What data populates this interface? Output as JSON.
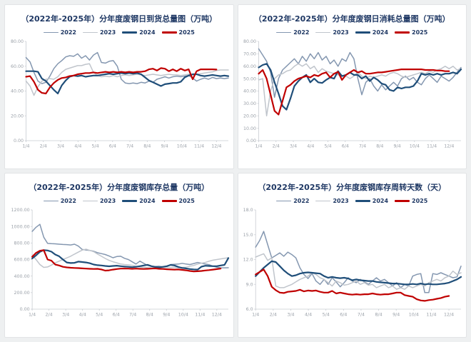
{
  "page": {
    "title_color": "#1F3864",
    "background": "#eef0f1"
  },
  "chart_data": [
    {
      "type": "line",
      "title": "（2022年-2025年）分年度废钢日到货总量图（万吨）",
      "ylim": [
        0,
        80
      ],
      "xmax": 51,
      "xtick_interval": 4.3636,
      "grid": false,
      "legend_position": "top",
      "yticks": [
        {
          "v": 0,
          "label": "0.00"
        },
        {
          "v": 20,
          "label": "20.00"
        },
        {
          "v": 40,
          "label": "40.00"
        },
        {
          "v": 60,
          "label": "60.00"
        },
        {
          "v": 80,
          "label": "80.00"
        }
      ],
      "xticks": [
        "1/4",
        "2/4",
        "3/4",
        "4/4",
        "5/4",
        "6/4",
        "7/4",
        "8/4",
        "9/4",
        "10/4",
        "11/4",
        "12/4"
      ],
      "series": [
        {
          "name": "2022",
          "color": "#8497B0",
          "width": 1.5,
          "values": [
            67,
            63.5,
            55,
            48,
            46,
            47,
            52,
            58,
            62,
            64.5,
            67.5,
            68.5,
            68,
            70,
            66.5,
            68.5,
            65,
            69,
            71,
            63,
            62.5,
            64,
            64.5,
            60,
            49.5,
            46.5,
            46,
            46.5,
            46,
            47,
            46.5,
            48,
            47,
            49.5,
            50.5,
            51.5,
            50.5,
            51.5,
            52,
            51.5,
            52,
            52.5,
            50.5,
            48,
            49.5,
            50.5,
            49.5,
            51,
            50,
            50.5,
            50,
            50.5
          ]
        },
        {
          "name": "2023",
          "color": "#C0C5CC",
          "width": 1.5,
          "values": [
            48,
            44,
            36.5,
            43.5,
            48,
            49.5,
            50,
            49.5,
            51.5,
            55,
            57.5,
            58.5,
            59.5,
            60.5,
            60.5,
            61.5,
            62,
            55,
            52.5,
            51.5,
            52,
            51.5,
            52.5,
            51.5,
            52.5,
            53,
            52.5,
            53,
            53.5,
            53,
            52.5,
            53,
            53.5,
            53,
            52.5,
            53,
            53.5,
            53,
            53,
            52.5,
            53,
            53.5,
            53,
            53.5,
            54,
            54.5,
            55,
            55.5,
            56.5,
            57,
            57,
            57
          ]
        },
        {
          "name": "2024",
          "color": "#1F4E79",
          "width": 2.2,
          "values": [
            56,
            56,
            56,
            55.5,
            50,
            48,
            44.5,
            41,
            38,
            44.5,
            48.5,
            51.5,
            52.5,
            52,
            52.5,
            51.5,
            52,
            52.5,
            52.5,
            53,
            53.5,
            54,
            53.5,
            54,
            54.5,
            54,
            54.5,
            54,
            54.5,
            53.5,
            51,
            48.5,
            47,
            45.5,
            44,
            45.5,
            46,
            46.5,
            46.5,
            47.5,
            51,
            52.5,
            53.5,
            53.5,
            52.5,
            52,
            52.5,
            53,
            52.5,
            52,
            52.5,
            52
          ]
        },
        {
          "name": "2025",
          "color": "#C00000",
          "width": 2.2,
          "values": [
            51.5,
            52,
            47.5,
            41,
            38.5,
            38,
            43,
            46.5,
            49,
            50.5,
            51,
            52,
            52.5,
            53.5,
            54,
            54.5,
            54.5,
            55,
            54.5,
            55,
            55.5,
            55,
            55.5,
            55,
            55.5,
            55,
            55.5,
            55,
            55.5,
            55.5,
            56,
            57.5,
            58,
            56.5,
            58.5,
            58,
            56,
            57.5,
            56,
            58,
            56.5,
            57.5,
            49.5,
            56,
            57.5,
            57.5,
            57.5,
            57.5,
            57.3
          ]
        }
      ]
    },
    {
      "type": "line",
      "title": "（2022年-2025年）分年度废钢日消耗总量图（万吨）",
      "ylim": [
        0,
        80
      ],
      "xmax": 51,
      "xtick_interval": 4.3636,
      "grid": false,
      "legend_position": "top",
      "yticks": [
        {
          "v": 0,
          "label": "0.00"
        },
        {
          "v": 10,
          "label": "10.00"
        },
        {
          "v": 20,
          "label": "20.00"
        },
        {
          "v": 30,
          "label": "30.00"
        },
        {
          "v": 40,
          "label": "40.00"
        },
        {
          "v": 50,
          "label": "50.00"
        },
        {
          "v": 60,
          "label": "60.00"
        },
        {
          "v": 70,
          "label": "70.00"
        },
        {
          "v": 80,
          "label": "80.00"
        }
      ],
      "xticks": [
        "1/4",
        "2/4",
        "3/4",
        "4/4",
        "5/4",
        "6/4",
        "7/4",
        "8/4",
        "9/4",
        "10/4",
        "11/4",
        "12/4"
      ],
      "series": [
        {
          "name": "2022",
          "color": "#8497B0",
          "width": 1.5,
          "values": [
            74,
            69,
            64,
            55,
            35,
            50,
            57,
            60,
            63,
            66,
            62,
            68,
            64,
            70,
            66,
            71,
            65,
            68,
            62,
            65,
            60,
            66,
            64,
            71,
            66,
            50,
            37,
            47,
            50,
            44,
            40,
            45,
            41,
            44,
            47,
            44,
            50,
            52,
            49,
            51,
            47,
            45,
            50,
            53,
            50,
            47,
            52,
            50,
            48,
            51,
            55,
            59
          ]
        },
        {
          "name": "2023",
          "color": "#C0C5CC",
          "width": 1.5,
          "values": [
            49,
            50,
            20,
            40,
            50,
            53,
            54,
            56,
            57,
            60,
            62,
            60,
            62,
            58,
            60,
            55,
            58,
            56,
            55,
            54,
            53,
            52.5,
            52,
            50,
            52,
            55,
            52,
            50,
            52,
            51,
            52,
            53,
            52,
            54,
            55,
            54,
            52,
            51,
            52,
            53,
            54,
            55,
            54,
            56,
            55,
            57,
            58,
            60,
            58,
            60,
            57,
            58
          ]
        },
        {
          "name": "2024",
          "color": "#1F4E79",
          "width": 2.2,
          "values": [
            59,
            61,
            62,
            57,
            47,
            38,
            28,
            25,
            34,
            44,
            48,
            51,
            53,
            47,
            50,
            47,
            46.5,
            49,
            51,
            50,
            56,
            52,
            53,
            55,
            53,
            53,
            50,
            52,
            48,
            51,
            49,
            46,
            45,
            41,
            40,
            43,
            42,
            43,
            43,
            44,
            48,
            54,
            53,
            54,
            53,
            54,
            53,
            54,
            54,
            55,
            54,
            57.5
          ]
        },
        {
          "name": "2025",
          "color": "#C00000",
          "width": 2.2,
          "values": [
            54,
            57,
            50,
            37,
            24,
            21,
            32,
            43,
            45,
            48,
            50,
            51,
            52,
            51,
            53,
            52,
            54,
            55,
            51,
            54,
            55.5,
            49,
            53,
            55,
            57,
            55,
            56,
            54,
            54,
            54.5,
            55,
            55,
            55.5,
            56,
            56.5,
            57,
            57.5,
            57.5,
            57.5,
            57.5,
            57.5,
            57.5,
            57,
            57,
            57,
            56.5,
            56.5,
            56,
            56
          ]
        }
      ]
    },
    {
      "type": "line",
      "title": "（2022年-2025年）分年度废钢库存总量（万吨）",
      "ylim": [
        0,
        1200
      ],
      "xmax": 51,
      "xtick_interval": 4.3636,
      "grid": false,
      "legend_position": "top",
      "yticks": [
        {
          "v": 0,
          "label": "0.00"
        },
        {
          "v": 200,
          "label": "200.00"
        },
        {
          "v": 400,
          "label": "400.00"
        },
        {
          "v": 600,
          "label": "600.00"
        },
        {
          "v": 800,
          "label": "800.00"
        },
        {
          "v": 1000,
          "label": "1000.00"
        },
        {
          "v": 1200,
          "label": "1200.00"
        }
      ],
      "xticks": [
        "1/4",
        "2/4",
        "3/4",
        "4/4",
        "5/4",
        "6/4",
        "7/4",
        "8/4",
        "9/4",
        "10/4",
        "11/4",
        "12/4"
      ],
      "series": [
        {
          "name": "2022",
          "color": "#8497B0",
          "width": 1.5,
          "values": [
            940,
            990,
            1026,
            870,
            795,
            792,
            790,
            786,
            782,
            780,
            776,
            786,
            762,
            722,
            716,
            710,
            700,
            682,
            672,
            660,
            642,
            622,
            636,
            640,
            615,
            600,
            572,
            546,
            581,
            554,
            528,
            520,
            515,
            520,
            510,
            516,
            540,
            543,
            546,
            554,
            546,
            540,
            552,
            565,
            556,
            546,
            538,
            520,
            506,
            501,
            500,
            501
          ]
        },
        {
          "name": "2023",
          "color": "#C0C5CC",
          "width": 1.5,
          "values": [
            656,
            600,
            540,
            505,
            510,
            533,
            560,
            580,
            600,
            620,
            640,
            666,
            690,
            714,
            725,
            710,
            695,
            666,
            640,
            613,
            590,
            573,
            560,
            546,
            540,
            535,
            530,
            520,
            510,
            506,
            502,
            500,
            503,
            505,
            502,
            506,
            504,
            506,
            503,
            505,
            508,
            520,
            528,
            546,
            556,
            565,
            580,
            592,
            600,
            608,
            615,
            622
          ]
        },
        {
          "name": "2024",
          "color": "#1F4E79",
          "width": 2.2,
          "values": [
            613,
            650,
            693,
            714,
            710,
            695,
            660,
            640,
            600,
            565,
            558,
            560,
            575,
            570,
            565,
            555,
            540,
            532,
            528,
            522,
            518,
            522,
            526,
            520,
            515,
            512,
            508,
            512,
            520,
            528,
            536,
            520,
            510,
            505,
            512,
            520,
            535,
            528,
            510,
            498,
            493,
            485,
            480,
            478,
            514,
            525,
            522,
            520,
            520,
            528,
            535,
            618
          ]
        },
        {
          "name": "2025",
          "color": "#C00000",
          "width": 2.2,
          "values": [
            634,
            680,
            706,
            714,
            600,
            586,
            540,
            528,
            512,
            505,
            501,
            498,
            496,
            493,
            490,
            488,
            486,
            488,
            480,
            466,
            470,
            478,
            485,
            490,
            492,
            490,
            488,
            490,
            488,
            486,
            488,
            490,
            493,
            488,
            486,
            483,
            480,
            478,
            480,
            475,
            470,
            462,
            456,
            458,
            462,
            468,
            472,
            478,
            484,
            490
          ]
        }
      ]
    },
    {
      "type": "line",
      "title": "（2022年-2025年）分年度废钢库存周转天数（天）",
      "ylim": [
        6,
        18
      ],
      "xmax": 51,
      "xtick_interval": 4.3636,
      "grid": false,
      "legend_position": "top",
      "yticks": [
        {
          "v": 6,
          "label": "6.0"
        },
        {
          "v": 9,
          "label": "9.0"
        },
        {
          "v": 12,
          "label": "12.0"
        },
        {
          "v": 15,
          "label": "15.0"
        },
        {
          "v": 18,
          "label": "18.0"
        }
      ],
      "xticks": [
        "1/4",
        "2/4",
        "3/4",
        "4/4",
        "5/4",
        "6/4",
        "7/4",
        "8/4",
        "9/4",
        "10/4",
        "11/4",
        "12/4"
      ],
      "series": [
        {
          "name": "2022",
          "color": "#8497B0",
          "width": 1.5,
          "values": [
            13.5,
            14.3,
            15.4,
            13.8,
            12.2,
            12.5,
            12.8,
            12.4,
            12.9,
            12.6,
            12.2,
            11.0,
            10.2,
            9.7,
            10.3,
            9.4,
            9.0,
            9.6,
            9.0,
            9.8,
            9.3,
            8.7,
            9.2,
            9.8,
            9.4,
            9.2,
            9.6,
            9.3,
            9.0,
            9.4,
            9.8,
            9.4,
            9.6,
            9.2,
            8.8,
            9.2,
            8.6,
            9.0,
            8.8,
            10.0,
            10.2,
            10.3,
            8.0,
            8.0,
            10.3,
            10.2,
            10.4,
            10.2,
            10.0,
            9.8,
            9.9,
            11.2
          ]
        },
        {
          "name": "2023",
          "color": "#C0C5CC",
          "width": 1.5,
          "values": [
            12.3,
            12.5,
            12.7,
            11.9,
            12.2,
            8.8,
            8.6,
            8.6,
            8.8,
            9.0,
            9.3,
            9.6,
            9.8,
            10.0,
            10.4,
            10.2,
            9.8,
            9.6,
            9.2,
            8.8,
            9.4,
            9.2,
            8.9,
            9.0,
            9.2,
            9.4,
            9.0,
            9.2,
            8.9,
            9.0,
            8.6,
            8.8,
            9.0,
            8.6,
            8.8,
            8.4,
            8.6,
            8.4,
            8.8,
            8.6,
            8.8,
            9.0,
            8.8,
            9.2,
            9.4,
            9.6,
            9.4,
            9.8,
            10.0,
            10.6,
            10.2,
            10.4
          ]
        },
        {
          "name": "2024",
          "color": "#1F4E79",
          "width": 2.2,
          "values": [
            10.0,
            10.5,
            11.0,
            11.4,
            11.8,
            11.7,
            11.2,
            10.7,
            10.3,
            10.0,
            10.1,
            10.3,
            10.4,
            10.45,
            10.4,
            10.35,
            10.3,
            10.0,
            9.8,
            9.9,
            9.8,
            9.75,
            9.8,
            9.7,
            9.5,
            9.6,
            9.5,
            9.45,
            9.4,
            9.4,
            9.3,
            9.25,
            9.2,
            9.15,
            9.1,
            9.1,
            9.05,
            9.0,
            9.0,
            9.05,
            9.0,
            9.1,
            9.0,
            9.05,
            9.0,
            9.0,
            9.05,
            9.1,
            9.2,
            9.4,
            9.6,
            9.9
          ]
        },
        {
          "name": "2025",
          "color": "#C00000",
          "width": 2.2,
          "values": [
            10.2,
            10.5,
            10.8,
            10.0,
            8.7,
            8.3,
            8.0,
            7.95,
            8.1,
            8.15,
            8.2,
            8.35,
            8.15,
            8.25,
            8.2,
            8.25,
            8.1,
            8.0,
            8.0,
            8.2,
            7.9,
            8.0,
            7.9,
            7.8,
            7.75,
            7.8,
            7.75,
            7.8,
            7.8,
            7.9,
            7.8,
            7.75,
            7.8,
            7.8,
            7.9,
            8.0,
            8.0,
            7.7,
            7.6,
            7.5,
            7.2,
            7.05,
            7.0,
            7.1,
            7.15,
            7.25,
            7.35,
            7.5,
            7.6
          ]
        }
      ]
    }
  ]
}
